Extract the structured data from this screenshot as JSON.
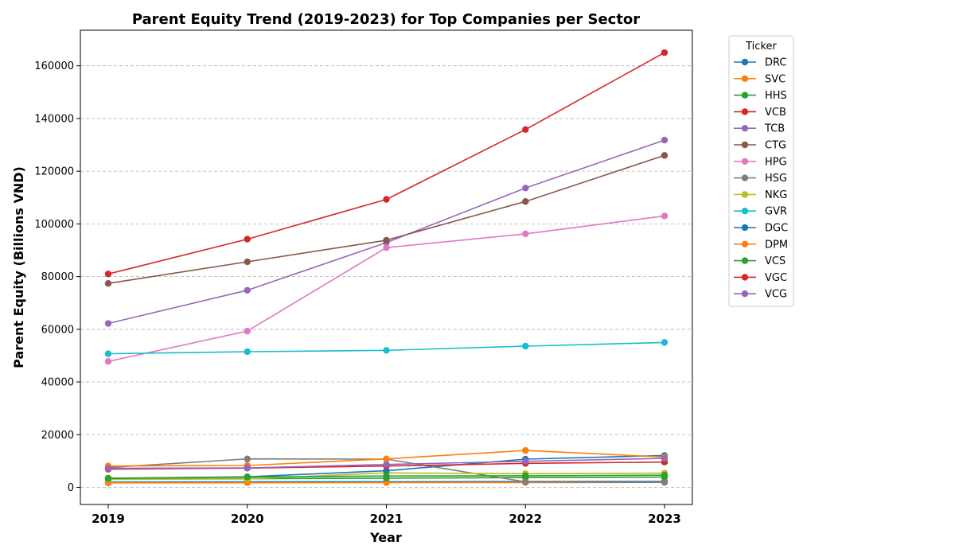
{
  "chart_data": {
    "type": "line",
    "title": "Parent Equity Trend (2019-2023) for Top Companies per Sector",
    "xlabel": "Year",
    "ylabel": "Parent Equity (Billions VND)",
    "categories": [
      "2019",
      "2020",
      "2021",
      "2022",
      "2023"
    ],
    "ylim": [
      -6500,
      173500
    ],
    "yticks": [
      0,
      20000,
      40000,
      60000,
      80000,
      100000,
      120000,
      140000,
      160000
    ],
    "grid": "y-dashed",
    "legend_title": "Ticker",
    "legend_position": "outside-right-top",
    "series": [
      {
        "name": "DRC",
        "color": "#1f77b4",
        "values": [
          2000,
          2100,
          2150,
          2200,
          2250
        ]
      },
      {
        "name": "SVC",
        "color": "#ff7f0e",
        "values": [
          1700,
          1750,
          1800,
          1850,
          1900
        ]
      },
      {
        "name": "HHS",
        "color": "#2ca02c",
        "values": [
          3200,
          3300,
          3500,
          3700,
          3900
        ]
      },
      {
        "name": "VCB",
        "color": "#d62728",
        "values": [
          81000,
          94200,
          109300,
          135800,
          165000
        ]
      },
      {
        "name": "TCB",
        "color": "#9467bd",
        "values": [
          62200,
          74800,
          92900,
          113600,
          131800
        ]
      },
      {
        "name": "CTG",
        "color": "#8c564b",
        "values": [
          77400,
          85600,
          93800,
          108500,
          126000
        ]
      },
      {
        "name": "HPG",
        "color": "#e377c2",
        "values": [
          47800,
          59300,
          91000,
          96200,
          103000
        ]
      },
      {
        "name": "HSG",
        "color": "#7f7f7f",
        "values": [
          7500,
          10800,
          10700,
          2100,
          1900
        ]
      },
      {
        "name": "NKG",
        "color": "#bcbd22",
        "values": [
          3000,
          3200,
          5500,
          5200,
          5400
        ]
      },
      {
        "name": "GVR",
        "color": "#17becf",
        "values": [
          50700,
          51500,
          52000,
          53600,
          55000
        ]
      },
      {
        "name": "DGC",
        "color": "#1f77b4",
        "values": [
          3400,
          4000,
          6300,
          10700,
          12100
        ]
      },
      {
        "name": "DPM",
        "color": "#ff7f0e",
        "values": [
          8100,
          8300,
          10800,
          14000,
          11500
        ]
      },
      {
        "name": "VCS",
        "color": "#2ca02c",
        "values": [
          3500,
          3900,
          4300,
          4400,
          4600
        ]
      },
      {
        "name": "VGC",
        "color": "#d62728",
        "values": [
          6900,
          7300,
          8100,
          9100,
          9600
        ]
      },
      {
        "name": "VCG",
        "color": "#9467bd",
        "values": [
          7200,
          7400,
          8700,
          9900,
          11000
        ]
      }
    ]
  }
}
